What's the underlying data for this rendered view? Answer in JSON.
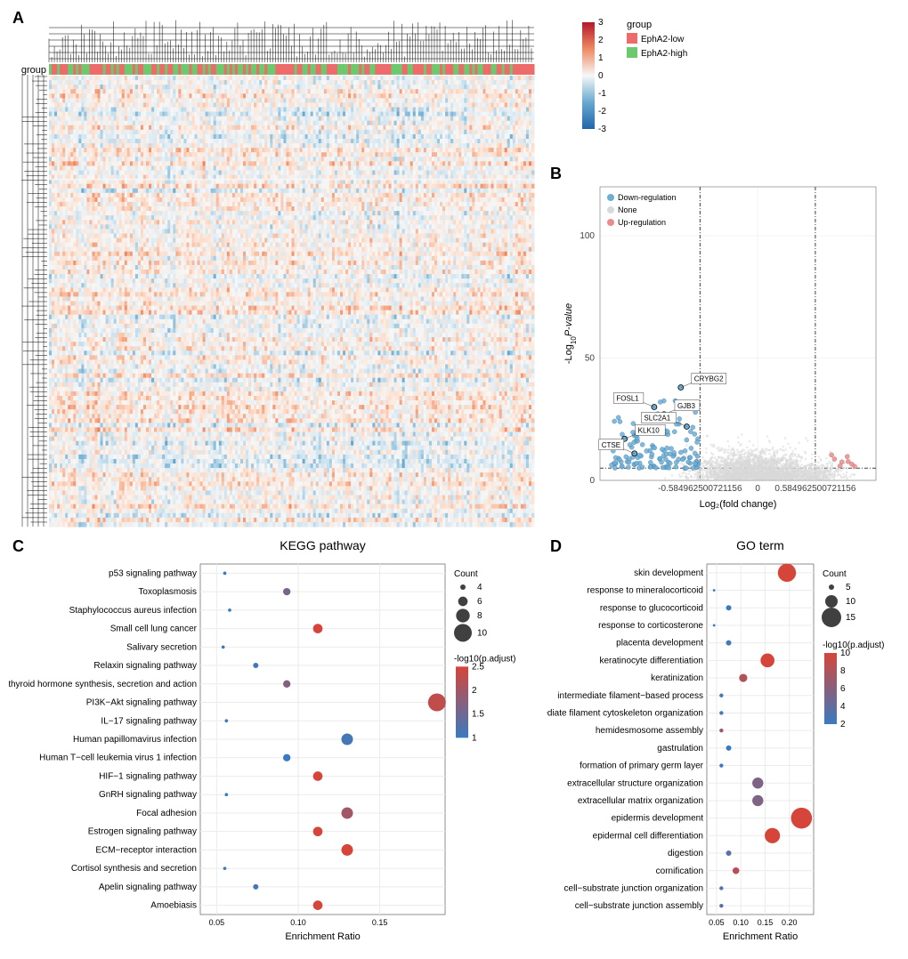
{
  "panel_labels": {
    "A": "A",
    "B": "B",
    "C": "C",
    "D": "D"
  },
  "heatmap": {
    "type": "heatmap",
    "group_label": "group",
    "legend_groups": [
      {
        "name": "EphA2-low",
        "color": "#ed6b6b"
      },
      {
        "name": "EphA2-high",
        "color": "#6dc96d"
      }
    ],
    "colorbar": {
      "min": -3,
      "max": 3,
      "ticks": [
        -3,
        -2,
        -1,
        0,
        1,
        2,
        3
      ],
      "colors": [
        "#2166ac",
        "#67a9cf",
        "#d1e5f0",
        "#f7f7f7",
        "#fddbc7",
        "#ef8a62",
        "#b2182b"
      ]
    },
    "n_rows": 100,
    "n_cols": 200,
    "row_dendro_width": 30,
    "col_dendro_height": 50,
    "anno_bar_height": 12
  },
  "volcano": {
    "type": "scatter",
    "xlabel": "Log₂(fold change)",
    "ylabel": "-Log₁₀P-value",
    "ylabel_html": "-Log<tspan baseline-shift='sub' font-size='8'>10</tspan><tspan font-style='italic'>P-value</tspan>",
    "legend_title": "",
    "legend": [
      {
        "name": "Down-regulation",
        "color": "#6baed6"
      },
      {
        "name": "None",
        "color": "#d9d9d9"
      },
      {
        "name": "Up-regulation",
        "color": "#e88c8c"
      }
    ],
    "xlim": [
      -1.6,
      1.2
    ],
    "ylim": [
      0,
      120
    ],
    "x_thresholds": [
      -0.584962500721156,
      0.584962500721156
    ],
    "y_threshold": 5,
    "xticks": [
      {
        "v": -0.584962500721156,
        "l": "-0.584962500721156"
      },
      {
        "v": 0,
        "l": "0"
      },
      {
        "v": 0.584962500721156,
        "l": "0.584962500721156"
      }
    ],
    "yticks": [
      0,
      50,
      100
    ],
    "background_color": "#ffffff",
    "grid_color": "#e8e8e8",
    "labeled_points": [
      {
        "name": "CRYBG2",
        "x": -0.78,
        "y": 38
      },
      {
        "name": "FOSL1",
        "x": -1.05,
        "y": 30
      },
      {
        "name": "GJB3",
        "x": -0.95,
        "y": 27
      },
      {
        "name": "SLC2A1",
        "x": -0.72,
        "y": 22
      },
      {
        "name": "KLK10",
        "x": -1.35,
        "y": 17
      },
      {
        "name": "CTSE",
        "x": -1.25,
        "y": 11
      }
    ]
  },
  "kegg": {
    "type": "dotplot",
    "title": "KEGG pathway",
    "xlabel": "Enrichment Ratio",
    "xlim": [
      0.04,
      0.19
    ],
    "xticks": [
      0.05,
      0.1,
      0.15
    ],
    "grid_color": "#ebebeb",
    "background_color": "#ffffff",
    "color_scale": {
      "title": "-log10(p.adjust)",
      "min": 1.0,
      "max": 2.5,
      "ticks": [
        1.0,
        1.5,
        2.0,
        2.5
      ],
      "low": "#3a7bbf",
      "high": "#d6453a"
    },
    "size_scale": {
      "title": "Count",
      "values": [
        4,
        6,
        8,
        10
      ],
      "min_r": 3,
      "max_r": 10
    },
    "terms": [
      {
        "name": "p53 signaling pathway",
        "x": 0.055,
        "count": 3,
        "p": 1.0
      },
      {
        "name": "Toxoplasmosis",
        "x": 0.093,
        "count": 5,
        "p": 1.6
      },
      {
        "name": "Staphylococcus aureus infection",
        "x": 0.058,
        "count": 3,
        "p": 1.0
      },
      {
        "name": "Small cell lung cancer",
        "x": 0.112,
        "count": 6,
        "p": 2.5
      },
      {
        "name": "Salivary secretion",
        "x": 0.054,
        "count": 3,
        "p": 1.0
      },
      {
        "name": "Relaxin signaling pathway",
        "x": 0.074,
        "count": 4,
        "p": 1.1
      },
      {
        "name": "Parathyroid hormone synthesis, secretion and action",
        "x": 0.093,
        "count": 5,
        "p": 1.7
      },
      {
        "name": "PI3K−Akt signaling pathway",
        "x": 0.185,
        "count": 10,
        "p": 2.3
      },
      {
        "name": "IL−17 signaling pathway",
        "x": 0.056,
        "count": 3,
        "p": 1.0
      },
      {
        "name": "Human papillomavirus infection",
        "x": 0.13,
        "count": 7,
        "p": 1.1
      },
      {
        "name": "Human T−cell leukemia virus 1 infection",
        "x": 0.093,
        "count": 5,
        "p": 1.0
      },
      {
        "name": "HIF−1 signaling pathway",
        "x": 0.112,
        "count": 6,
        "p": 2.5
      },
      {
        "name": "GnRH signaling pathway",
        "x": 0.056,
        "count": 3,
        "p": 1.0
      },
      {
        "name": "Focal adhesion",
        "x": 0.13,
        "count": 7,
        "p": 2.0
      },
      {
        "name": "Estrogen signaling pathway",
        "x": 0.112,
        "count": 6,
        "p": 2.5
      },
      {
        "name": "ECM−receptor interaction",
        "x": 0.13,
        "count": 7,
        "p": 2.7
      },
      {
        "name": "Cortisol synthesis and secretion",
        "x": 0.055,
        "count": 3,
        "p": 1.0
      },
      {
        "name": "Apelin signaling pathway",
        "x": 0.074,
        "count": 4,
        "p": 1.1
      },
      {
        "name": "Amoebiasis",
        "x": 0.112,
        "count": 6,
        "p": 2.5
      }
    ]
  },
  "go": {
    "type": "dotplot",
    "title": "GO term",
    "xlabel": "Enrichment Ratio",
    "xlim": [
      0.03,
      0.25
    ],
    "xticks": [
      0.05,
      0.1,
      0.15,
      0.2
    ],
    "grid_color": "#ebebeb",
    "background_color": "#ffffff",
    "color_scale": {
      "title": "-log10(p.adjust)",
      "min": 2,
      "max": 10,
      "ticks": [
        2,
        4,
        6,
        8,
        10
      ],
      "low": "#3a7bbf",
      "high": "#d6453a"
    },
    "size_scale": {
      "title": "Count",
      "values": [
        5,
        10,
        15
      ],
      "min_r": 3,
      "max_r": 11
    },
    "terms": [
      {
        "name": "skin development",
        "x": 0.195,
        "count": 14,
        "p": 10.5
      },
      {
        "name": "response to mineralocorticoid",
        "x": 0.045,
        "count": 3,
        "p": 2.0
      },
      {
        "name": "response to glucocorticoid",
        "x": 0.075,
        "count": 5,
        "p": 2.0
      },
      {
        "name": "response to corticosterone",
        "x": 0.045,
        "count": 3,
        "p": 2.0
      },
      {
        "name": "placenta development",
        "x": 0.075,
        "count": 5,
        "p": 2.5
      },
      {
        "name": "keratinocyte differentiation",
        "x": 0.155,
        "count": 11,
        "p": 10.0
      },
      {
        "name": "keratinization",
        "x": 0.105,
        "count": 7,
        "p": 8.0
      },
      {
        "name": "intermediate filament−based process",
        "x": 0.06,
        "count": 4,
        "p": 2.5
      },
      {
        "name": "intermediate filament cytoskeleton organization",
        "x": 0.06,
        "count": 4,
        "p": 2.5
      },
      {
        "name": "hemidesmosome assembly",
        "x": 0.06,
        "count": 4,
        "p": 7.0
      },
      {
        "name": "gastrulation",
        "x": 0.075,
        "count": 5,
        "p": 2.0
      },
      {
        "name": "formation of primary germ layer",
        "x": 0.06,
        "count": 4,
        "p": 2.0
      },
      {
        "name": "extracellular structure organization",
        "x": 0.135,
        "count": 9,
        "p": 5.5
      },
      {
        "name": "extracellular matrix organization",
        "x": 0.135,
        "count": 9,
        "p": 5.5
      },
      {
        "name": "epidermis development",
        "x": 0.225,
        "count": 16,
        "p": 10.5
      },
      {
        "name": "epidermal cell differentiation",
        "x": 0.165,
        "count": 12,
        "p": 10.0
      },
      {
        "name": "digestion",
        "x": 0.075,
        "count": 5,
        "p": 3.5
      },
      {
        "name": "cornification",
        "x": 0.09,
        "count": 6,
        "p": 8.5
      },
      {
        "name": "cell−substrate junction organization",
        "x": 0.06,
        "count": 4,
        "p": 3.0
      },
      {
        "name": "cell−substrate junction assembly",
        "x": 0.06,
        "count": 4,
        "p": 3.5
      }
    ]
  }
}
